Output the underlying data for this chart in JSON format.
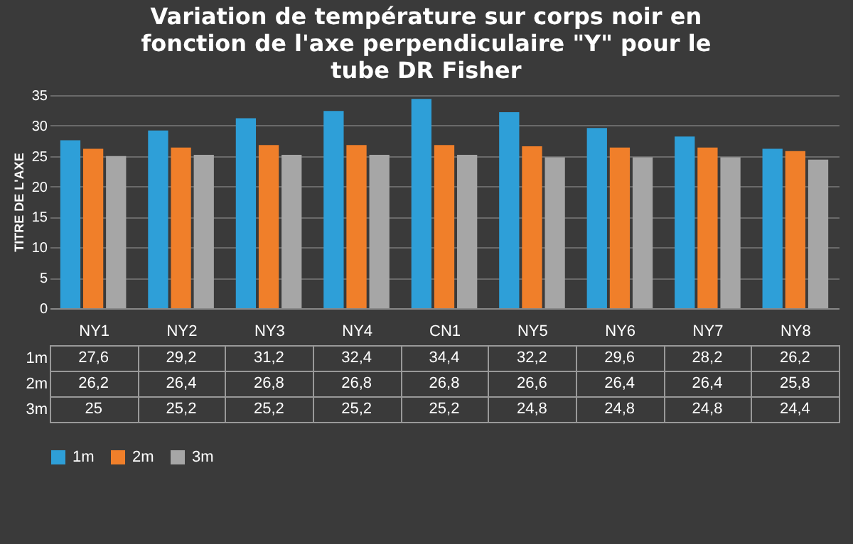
{
  "chart_data": {
    "type": "bar",
    "title": "Variation de température sur corps noir en fonction de l'axe perpendiculaire \"Y\" pour le tube DR Fisher",
    "ylabel": "TITRE DE L'AXE",
    "categories": [
      "NY1",
      "NY2",
      "NY3",
      "NY4",
      "CN1",
      "NY5",
      "NY6",
      "NY7",
      "NY8"
    ],
    "series": [
      {
        "name": "1m",
        "color": "#2e9fd8",
        "values": [
          27.6,
          29.2,
          31.2,
          32.4,
          34.4,
          32.2,
          29.6,
          28.2,
          26.2
        ],
        "value_labels": [
          "27,6",
          "29,2",
          "31,2",
          "32,4",
          "34,4",
          "32,2",
          "29,6",
          "28,2",
          "26,2"
        ]
      },
      {
        "name": "2m",
        "color": "#f07f2a",
        "values": [
          26.2,
          26.4,
          26.8,
          26.8,
          26.8,
          26.6,
          26.4,
          26.4,
          25.8
        ],
        "value_labels": [
          "26,2",
          "26,4",
          "26,8",
          "26,8",
          "26,8",
          "26,6",
          "26,4",
          "26,4",
          "25,8"
        ]
      },
      {
        "name": "3m",
        "color": "#a6a6a6",
        "values": [
          25,
          25.2,
          25.2,
          25.2,
          25.2,
          24.8,
          24.8,
          24.8,
          24.4
        ],
        "value_labels": [
          "25",
          "25,2",
          "25,2",
          "25,2",
          "25,2",
          "24,8",
          "24,8",
          "24,8",
          "24,4"
        ]
      }
    ],
    "ylim": [
      0,
      35
    ],
    "yticks": [
      0,
      5,
      10,
      15,
      20,
      25,
      30,
      35
    ],
    "grid": "y",
    "legend": "bottom"
  }
}
